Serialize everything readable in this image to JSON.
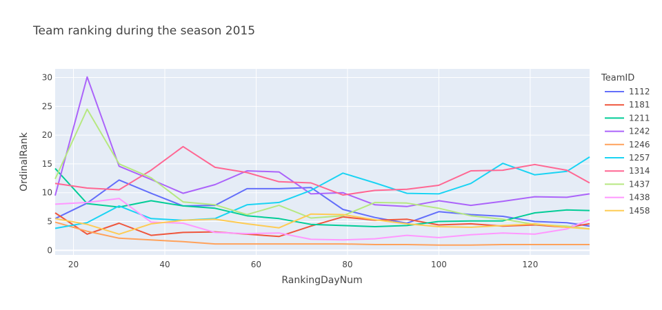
{
  "chart_data": {
    "type": "line",
    "title": "Team ranking during the season 2015",
    "xlabel": "RankingDayNum",
    "ylabel": "OrdinalRank",
    "xlim": [
      16,
      133
    ],
    "ylim": [
      -0.8,
      31.5
    ],
    "x_ticks": [
      20,
      40,
      60,
      80,
      100,
      120
    ],
    "y_ticks": [
      0,
      5,
      10,
      15,
      20,
      25,
      30
    ],
    "grid": true,
    "legend_title": "TeamID",
    "legend_position": "right",
    "x": [
      16,
      23,
      30,
      37,
      44,
      51,
      58,
      65,
      72,
      79,
      86,
      93,
      100,
      107,
      114,
      121,
      128,
      133
    ],
    "series": [
      {
        "name": "1112",
        "color": "#636efa",
        "values": [
          5.5,
          8.2,
          12.2,
          9.9,
          7.7,
          7.8,
          10.7,
          10.7,
          10.9,
          7.1,
          5.7,
          4.7,
          6.7,
          6.2,
          5.9,
          5.0,
          4.8,
          4.2
        ]
      },
      {
        "name": "1181",
        "color": "#EF553B",
        "values": [
          6.5,
          2.8,
          4.7,
          2.6,
          3.1,
          3.2,
          2.8,
          2.4,
          4.2,
          5.8,
          5.2,
          5.4,
          4.4,
          4.6,
          4.2,
          4.4,
          4.0,
          4.6
        ]
      },
      {
        "name": "1211",
        "color": "#00cc96",
        "values": [
          14.2,
          8.1,
          7.5,
          8.6,
          7.7,
          7.3,
          6.0,
          5.5,
          4.5,
          4.3,
          4.1,
          4.3,
          5.0,
          5.1,
          5.1,
          6.5,
          7.0,
          6.9
        ]
      },
      {
        "name": "1242",
        "color": "#ab63fa",
        "values": [
          9.5,
          30.1,
          14.6,
          12.3,
          9.9,
          11.4,
          13.8,
          13.6,
          9.8,
          10.0,
          7.9,
          7.6,
          8.6,
          7.8,
          8.5,
          9.3,
          9.2,
          9.8
        ]
      },
      {
        "name": "1246",
        "color": "#FFA15A",
        "values": [
          4.9,
          3.3,
          2.1,
          1.8,
          1.5,
          1.1,
          1.1,
          1.1,
          1.1,
          1.1,
          1.0,
          1.0,
          0.9,
          0.9,
          1.0,
          1.0,
          1.0,
          1.0
        ]
      },
      {
        "name": "1257",
        "color": "#19d3f3",
        "values": [
          3.8,
          4.8,
          7.7,
          5.5,
          5.2,
          5.5,
          7.9,
          8.3,
          10.4,
          13.4,
          11.7,
          9.9,
          9.8,
          11.6,
          15.1,
          13.1,
          13.7,
          16.2
        ]
      },
      {
        "name": "1314",
        "color": "#FF6692",
        "values": [
          11.6,
          10.8,
          10.5,
          13.9,
          18.0,
          14.4,
          13.5,
          11.9,
          11.7,
          9.6,
          10.4,
          10.6,
          11.3,
          13.8,
          13.9,
          14.9,
          13.9,
          11.7
        ]
      },
      {
        "name": "1437",
        "color": "#B6E880",
        "values": [
          12.4,
          24.5,
          15.0,
          12.6,
          8.4,
          7.9,
          6.2,
          7.8,
          5.6,
          6.0,
          8.3,
          8.2,
          7.3,
          6.0,
          5.4,
          4.5,
          4.2,
          3.7
        ]
      },
      {
        "name": "1438",
        "color": "#FF97FF",
        "values": [
          8.0,
          8.3,
          9.0,
          4.9,
          4.7,
          3.1,
          2.9,
          3.0,
          1.9,
          1.8,
          2.0,
          2.6,
          2.2,
          2.7,
          3.0,
          2.8,
          3.7,
          5.3
        ]
      },
      {
        "name": "1458",
        "color": "#FECB52",
        "values": [
          5.5,
          4.5,
          2.8,
          4.6,
          5.2,
          5.4,
          4.6,
          3.9,
          6.3,
          6.2,
          5.3,
          4.6,
          4.1,
          4.0,
          4.3,
          4.6,
          4.0,
          3.7
        ]
      }
    ]
  }
}
